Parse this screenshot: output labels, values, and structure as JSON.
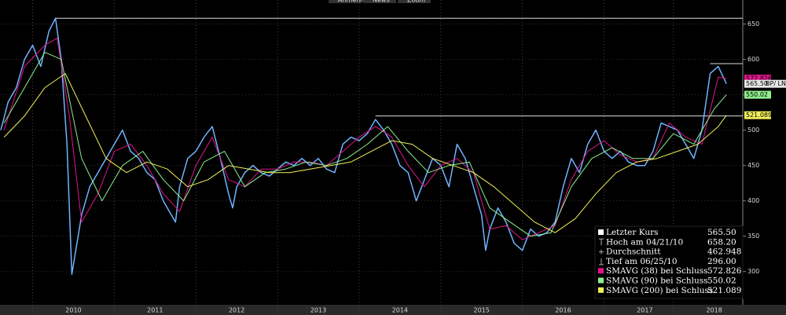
{
  "toolbar": [
    "Anmerken",
    "News",
    "Zoom"
  ],
  "chart_data": {
    "type": "line",
    "ticker": "BP/ LN",
    "xlim": [
      2009.6,
      2018.7
    ],
    "xticks": [
      {
        "value": 2010.5,
        "label": "2010"
      },
      {
        "value": 2011.5,
        "label": "2011"
      },
      {
        "value": 2012.5,
        "label": "2012"
      },
      {
        "value": 2013.5,
        "label": "2013"
      },
      {
        "value": 2014.5,
        "label": "2014"
      },
      {
        "value": 2015.5,
        "label": "2015"
      },
      {
        "value": 2016.5,
        "label": "2016"
      },
      {
        "value": 2017.5,
        "label": "2017"
      },
      {
        "value": 2018.35,
        "label": "2018"
      }
    ],
    "ylim": [
      253,
      684
    ],
    "yticks": [
      300,
      350,
      400,
      450,
      500,
      550,
      600,
      650
    ],
    "grid": true,
    "legend_position": "lower right",
    "hlines": [
      {
        "x": 2010.28,
        "y": 658.2
      },
      {
        "x": 2014.2,
        "y": 520
      },
      {
        "x": 2018.3,
        "y": 594
      }
    ],
    "series": [
      {
        "name": "Letzter Kurs",
        "color": "#6fb3ff",
        "last_label": "565.50",
        "x": [
          2009.61,
          2009.7,
          2009.8,
          2009.9,
          2010.0,
          2010.1,
          2010.2,
          2010.28,
          2010.35,
          2010.42,
          2010.48,
          2010.6,
          2010.7,
          2010.8,
          2010.9,
          2011.0,
          2011.1,
          2011.2,
          2011.3,
          2011.4,
          2011.5,
          2011.6,
          2011.7,
          2011.75,
          2011.8,
          2011.9,
          2012.0,
          2012.1,
          2012.2,
          2012.3,
          2012.4,
          2012.45,
          2012.5,
          2012.6,
          2012.7,
          2012.8,
          2012.9,
          2013.0,
          2013.1,
          2013.2,
          2013.3,
          2013.4,
          2013.5,
          2013.6,
          2013.7,
          2013.8,
          2013.9,
          2014.0,
          2014.1,
          2014.2,
          2014.3,
          2014.4,
          2014.5,
          2014.6,
          2014.7,
          2014.8,
          2014.9,
          2015.0,
          2015.1,
          2015.2,
          2015.3,
          2015.4,
          2015.5,
          2015.55,
          2015.6,
          2015.7,
          2015.8,
          2015.9,
          2016.0,
          2016.1,
          2016.2,
          2016.3,
          2016.4,
          2016.5,
          2016.6,
          2016.7,
          2016.8,
          2016.9,
          2017.0,
          2017.1,
          2017.2,
          2017.3,
          2017.4,
          2017.5,
          2017.6,
          2017.7,
          2017.8,
          2017.9,
          2018.0,
          2018.1,
          2018.2,
          2018.3,
          2018.4,
          2018.5
        ],
        "values": [
          500,
          540,
          560,
          600,
          620,
          590,
          640,
          658.2,
          600,
          480,
          296,
          380,
          420,
          440,
          460,
          480,
          500,
          470,
          460,
          440,
          430,
          400,
          380,
          370,
          420,
          460,
          470,
          490,
          505,
          460,
          410,
          390,
          420,
          440,
          450,
          440,
          435,
          445,
          455,
          450,
          460,
          450,
          460,
          445,
          440,
          480,
          490,
          485,
          495,
          515,
          500,
          480,
          450,
          440,
          400,
          430,
          460,
          450,
          420,
          480,
          460,
          420,
          380,
          330,
          360,
          390,
          370,
          340,
          330,
          360,
          350,
          355,
          370,
          420,
          460,
          440,
          480,
          500,
          470,
          460,
          470,
          455,
          450,
          450,
          470,
          510,
          505,
          500,
          480,
          460,
          500,
          580,
          590,
          565.5
        ]
      },
      {
        "name": "SMAVG (38) bei Schluss",
        "color": "#e0158c",
        "x": [
          2009.65,
          2009.9,
          2010.15,
          2010.3,
          2010.45,
          2010.6,
          2010.8,
          2011.0,
          2011.2,
          2011.4,
          2011.6,
          2011.8,
          2012.0,
          2012.2,
          2012.4,
          2012.6,
          2012.8,
          2013.0,
          2013.2,
          2013.4,
          2013.6,
          2013.8,
          2014.0,
          2014.2,
          2014.4,
          2014.6,
          2014.8,
          2015.0,
          2015.2,
          2015.4,
          2015.6,
          2015.8,
          2016.0,
          2016.2,
          2016.4,
          2016.6,
          2016.8,
          2017.0,
          2017.2,
          2017.4,
          2017.6,
          2017.8,
          2018.0,
          2018.2,
          2018.4,
          2018.5
        ],
        "values": [
          500,
          590,
          620,
          630,
          520,
          370,
          410,
          470,
          480,
          450,
          410,
          385,
          450,
          490,
          430,
          420,
          445,
          445,
          455,
          455,
          450,
          470,
          490,
          505,
          490,
          450,
          420,
          450,
          460,
          440,
          360,
          365,
          345,
          355,
          365,
          430,
          470,
          485,
          465,
          455,
          460,
          510,
          490,
          480,
          575,
          572.826
        ]
      },
      {
        "name": "SMAVG (90) bei Schluss",
        "color": "#8ef08e",
        "x": [
          2009.65,
          2009.9,
          2010.15,
          2010.35,
          2010.6,
          2010.85,
          2011.1,
          2011.35,
          2011.6,
          2011.85,
          2012.1,
          2012.35,
          2012.6,
          2012.85,
          2013.1,
          2013.35,
          2013.6,
          2013.85,
          2014.1,
          2014.35,
          2014.6,
          2014.85,
          2015.1,
          2015.35,
          2015.6,
          2015.85,
          2016.1,
          2016.35,
          2016.6,
          2016.85,
          2017.1,
          2017.35,
          2017.6,
          2017.85,
          2018.1,
          2018.35,
          2018.5
        ],
        "values": [
          510,
          560,
          610,
          600,
          460,
          400,
          450,
          470,
          430,
          400,
          455,
          470,
          420,
          440,
          445,
          455,
          450,
          460,
          480,
          505,
          470,
          440,
          450,
          455,
          390,
          370,
          350,
          355,
          420,
          460,
          475,
          460,
          460,
          495,
          480,
          530,
          550.02
        ]
      },
      {
        "name": "SMAVG (200) bei Schluss",
        "color": "#f2f05a",
        "x": [
          2009.65,
          2009.9,
          2010.15,
          2010.4,
          2010.65,
          2010.9,
          2011.15,
          2011.4,
          2011.65,
          2011.9,
          2012.15,
          2012.4,
          2012.65,
          2012.9,
          2013.15,
          2013.4,
          2013.65,
          2013.9,
          2014.15,
          2014.4,
          2014.65,
          2014.9,
          2015.15,
          2015.4,
          2015.65,
          2015.9,
          2016.15,
          2016.4,
          2016.65,
          2016.9,
          2017.15,
          2017.4,
          2017.65,
          2017.9,
          2018.15,
          2018.4,
          2018.5
        ],
        "values": [
          490,
          520,
          560,
          580,
          520,
          460,
          440,
          455,
          445,
          420,
          430,
          450,
          445,
          440,
          440,
          445,
          450,
          455,
          470,
          485,
          480,
          460,
          450,
          440,
          420,
          395,
          370,
          355,
          375,
          410,
          440,
          455,
          460,
          470,
          480,
          505,
          521.089
        ]
      }
    ],
    "stats": [
      {
        "label": "Hoch am 04/21/10",
        "value": 658.2,
        "value_label": "658.20"
      },
      {
        "label": "Durchschnitt",
        "value": 462.948
      },
      {
        "label": "Tief am 06/25/10",
        "value": 296,
        "value_label": "296.00"
      }
    ]
  }
}
